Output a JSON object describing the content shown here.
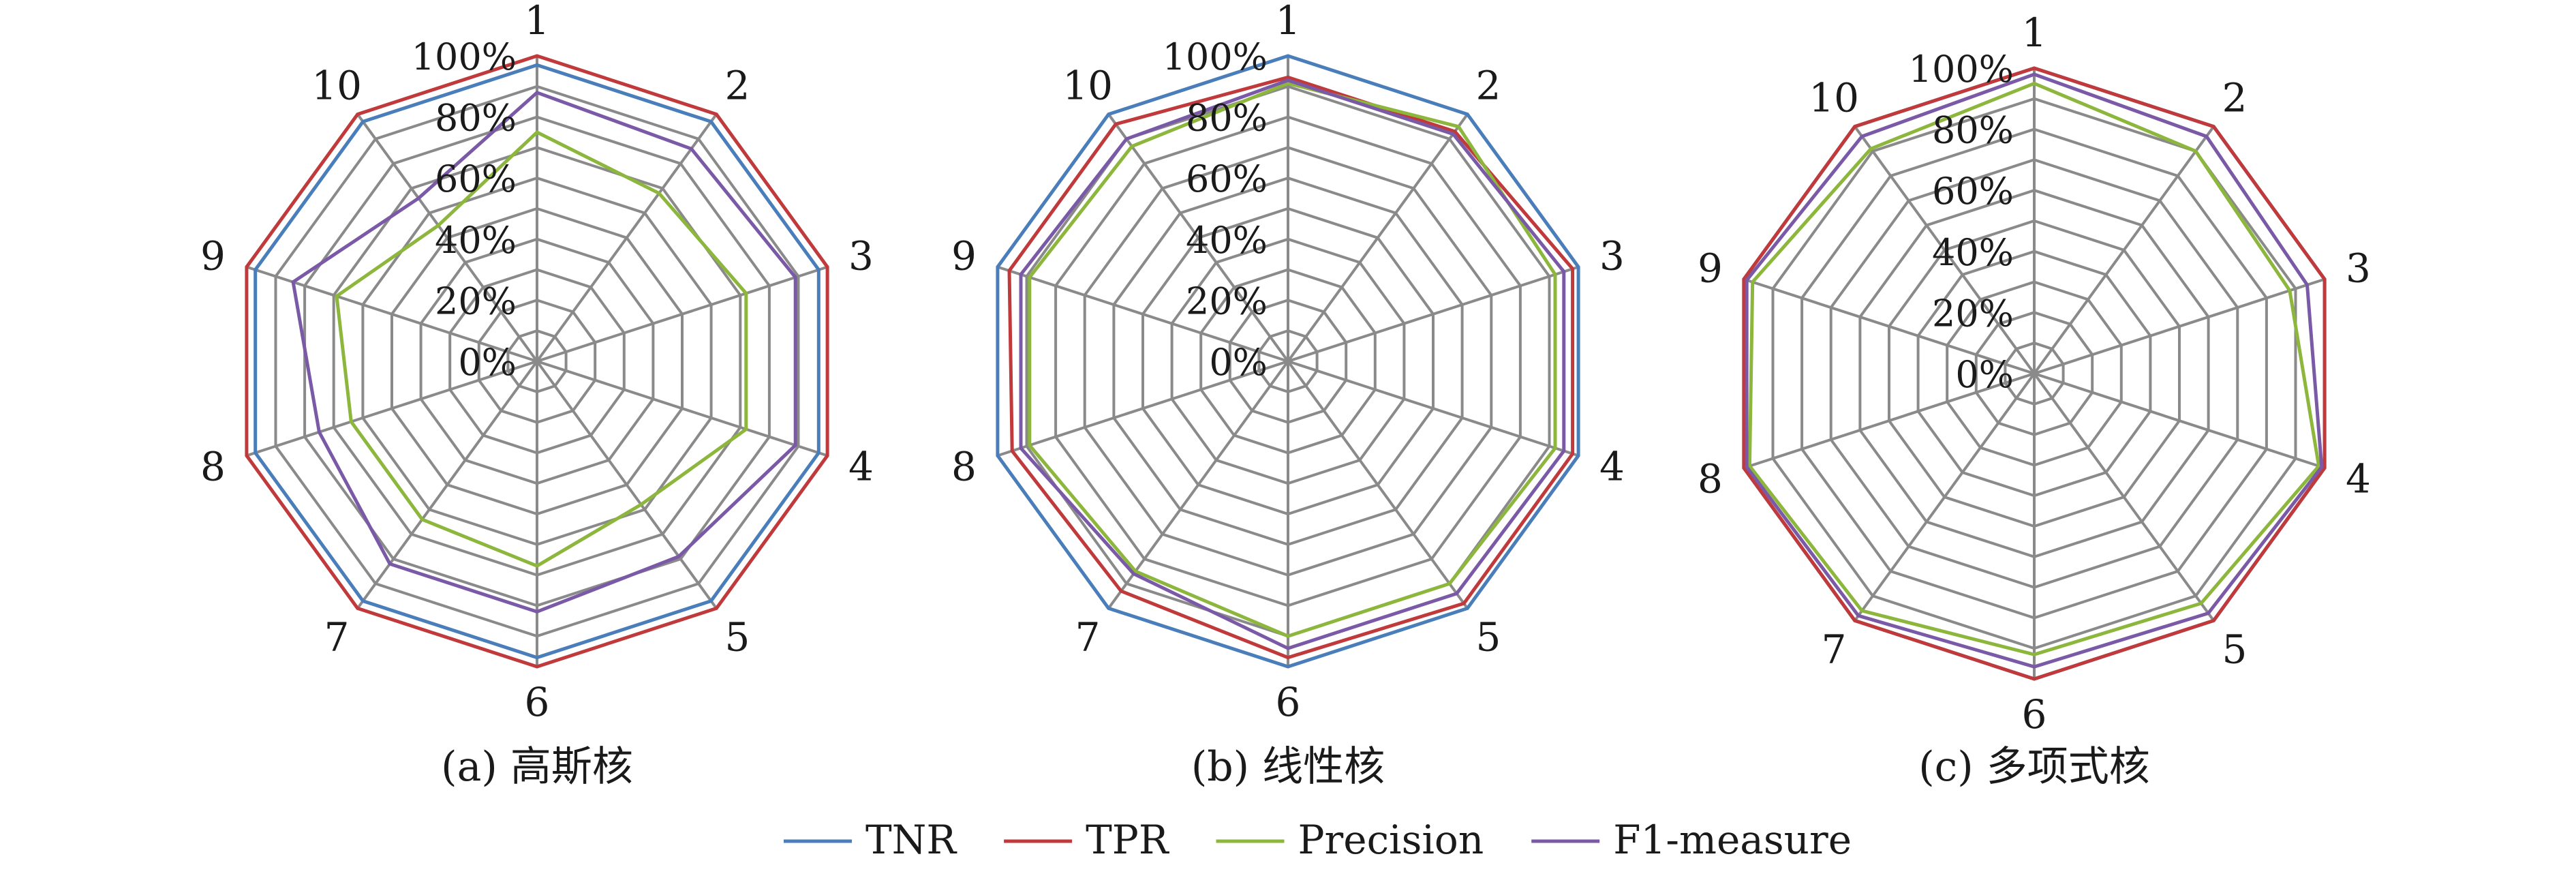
{
  "chart_data": [
    {
      "type": "radar",
      "caption": "(a) 高斯核",
      "axes": [
        "1",
        "2",
        "3",
        "4",
        "5",
        "6",
        "7",
        "8",
        "9",
        "10"
      ],
      "radial_ticks": [
        "0%",
        "20%",
        "40%",
        "60%",
        "80%",
        "100%"
      ],
      "rlim": [
        0,
        100
      ],
      "grid": true,
      "series": [
        {
          "name": "TNR",
          "color": "#4a7ebb",
          "values": [
            97,
            97,
            97,
            97,
            97,
            97,
            97,
            97,
            97,
            97
          ]
        },
        {
          "name": "TPR",
          "color": "#c0393b",
          "values": [
            100,
            100,
            100,
            100,
            100,
            100,
            100,
            100,
            100,
            100
          ]
        },
        {
          "name": "Precision",
          "color": "#8db63c",
          "values": [
            75,
            68,
            72,
            72,
            58,
            67,
            64,
            64,
            69,
            55
          ]
        },
        {
          "name": "F1-measure",
          "color": "#7a5aa6",
          "values": [
            88,
            86,
            89,
            89,
            79,
            82,
            82,
            75,
            84,
            66
          ]
        }
      ]
    },
    {
      "type": "radar",
      "caption": "(b) 线性核",
      "axes": [
        "1",
        "2",
        "3",
        "4",
        "5",
        "6",
        "7",
        "8",
        "9",
        "10"
      ],
      "radial_ticks": [
        "0%",
        "20%",
        "40%",
        "60%",
        "80%",
        "100%"
      ],
      "rlim": [
        0,
        100
      ],
      "grid": true,
      "series": [
        {
          "name": "TNR",
          "color": "#4a7ebb",
          "values": [
            100,
            100,
            100,
            100,
            100,
            100,
            100,
            100,
            100,
            100
          ]
        },
        {
          "name": "TPR",
          "color": "#c0393b",
          "values": [
            93,
            93,
            98,
            98,
            98,
            97,
            93,
            95,
            96,
            96
          ]
        },
        {
          "name": "Precision",
          "color": "#8db63c",
          "values": [
            91,
            95,
            92,
            92,
            90,
            90,
            85,
            89,
            89,
            87
          ]
        },
        {
          "name": "F1-measure",
          "color": "#7a5aa6",
          "values": [
            92,
            92,
            95,
            95,
            94,
            94,
            86,
            92,
            92,
            90
          ]
        }
      ]
    },
    {
      "type": "radar",
      "caption": "(c) 多项式核",
      "axes": [
        "1",
        "2",
        "3",
        "4",
        "5",
        "6",
        "7",
        "8",
        "9",
        "10"
      ],
      "radial_ticks": [
        "0%",
        "20%",
        "40%",
        "60%",
        "80%",
        "100%"
      ],
      "rlim": [
        0,
        100
      ],
      "grid": true,
      "series": [
        {
          "name": "TNR",
          "color": "#4a7ebb",
          "values": [
            100,
            100,
            100,
            100,
            100,
            100,
            100,
            100,
            100,
            100
          ]
        },
        {
          "name": "TPR",
          "color": "#c0393b",
          "values": [
            100,
            100,
            100,
            100,
            100,
            100,
            100,
            100,
            100,
            100
          ]
        },
        {
          "name": "Precision",
          "color": "#8db63c",
          "values": [
            95,
            90,
            88,
            98,
            93,
            92,
            96,
            98,
            97,
            91
          ]
        },
        {
          "name": "F1-measure",
          "color": "#7a5aa6",
          "values": [
            98,
            96,
            94,
            99,
            97,
            96,
            98,
            99,
            99,
            96
          ]
        }
      ]
    }
  ],
  "legend": {
    "placement": "bottom-center",
    "items": [
      {
        "label": "TNR",
        "color": "#4a7ebb"
      },
      {
        "label": "TPR",
        "color": "#c0393b"
      },
      {
        "label": "Precision",
        "color": "#8db63c"
      },
      {
        "label": "F1-measure",
        "color": "#7a5aa6"
      }
    ]
  }
}
